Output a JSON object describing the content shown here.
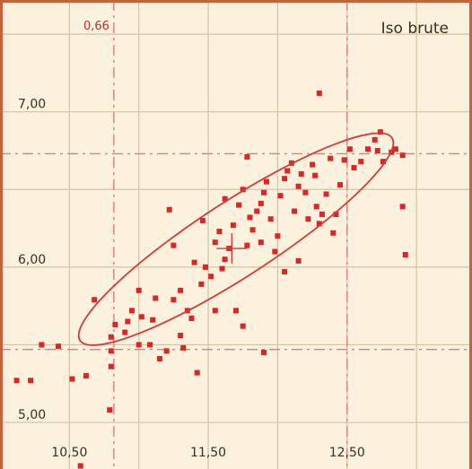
{
  "chart_data": {
    "type": "scatter",
    "title": "Iso brute",
    "correlation_label": "0,66",
    "xlim": [
      10.0,
      13.4
    ],
    "ylim": [
      4.7,
      7.72
    ],
    "x_ticks": [
      {
        "value": 10.5,
        "label": "10,50"
      },
      {
        "value": 11.5,
        "label": "11,50"
      },
      {
        "value": 12.5,
        "label": "12,50"
      }
    ],
    "y_ticks": [
      {
        "value": 5.0,
        "label": "5,00"
      },
      {
        "value": 6.0,
        "label": "6,00"
      },
      {
        "value": 7.0,
        "label": "7,00"
      }
    ],
    "grid": true,
    "colors": {
      "background": "#fbf1dd",
      "grid": "#d2c3a5",
      "points": "#dc2626",
      "ellipse": "#d43a3a",
      "dashed": "#e07b86",
      "frame": "#c5623a"
    },
    "mean": {
      "x": 11.67,
      "y": 6.12
    },
    "dashed_lines": {
      "x": [
        10.82,
        12.5
      ],
      "y": [
        5.47,
        6.73
      ]
    },
    "ellipse": {
      "cx": 11.7,
      "cy": 6.18,
      "rx_data": 1.34,
      "ry_data": 0.27,
      "angle_deg": -33
    },
    "points": [
      [
        10.0,
        5.65
      ],
      [
        10.12,
        5.27
      ],
      [
        10.22,
        5.27
      ],
      [
        10.42,
        5.49
      ],
      [
        10.52,
        5.28
      ],
      [
        10.62,
        5.3
      ],
      [
        10.68,
        5.79
      ],
      [
        10.79,
        5.08
      ],
      [
        10.8,
        5.36
      ],
      [
        10.8,
        5.46
      ],
      [
        10.8,
        5.55
      ],
      [
        10.83,
        5.63
      ],
      [
        10.9,
        5.58
      ],
      [
        10.92,
        5.65
      ],
      [
        10.95,
        5.72
      ],
      [
        11.0,
        5.5
      ],
      [
        11.02,
        5.68
      ],
      [
        11.08,
        5.5
      ],
      [
        11.1,
        5.66
      ],
      [
        11.12,
        5.8
      ],
      [
        11.15,
        5.41
      ],
      [
        11.2,
        5.46
      ],
      [
        11.25,
        5.79
      ],
      [
        11.3,
        5.85
      ],
      [
        11.3,
        5.56
      ],
      [
        11.32,
        5.48
      ],
      [
        11.35,
        5.72
      ],
      [
        11.38,
        5.67
      ],
      [
        11.4,
        6.03
      ],
      [
        11.42,
        5.32
      ],
      [
        11.45,
        5.89
      ],
      [
        11.48,
        6.0
      ],
      [
        11.52,
        5.94
      ],
      [
        11.55,
        6.16
      ],
      [
        11.6,
        5.99
      ],
      [
        11.62,
        6.05
      ],
      [
        11.65,
        6.12
      ],
      [
        11.68,
        6.27
      ],
      [
        11.7,
        5.72
      ],
      [
        11.72,
        6.4
      ],
      [
        11.75,
        6.5
      ],
      [
        11.78,
        6.14
      ],
      [
        11.8,
        6.32
      ],
      [
        11.82,
        6.24
      ],
      [
        11.85,
        6.36
      ],
      [
        11.88,
        6.41
      ],
      [
        11.9,
        6.48
      ],
      [
        11.92,
        6.55
      ],
      [
        11.95,
        6.31
      ],
      [
        11.98,
        6.1
      ],
      [
        12.0,
        6.2
      ],
      [
        12.02,
        6.46
      ],
      [
        12.05,
        6.57
      ],
      [
        12.07,
        6.62
      ],
      [
        12.1,
        6.67
      ],
      [
        12.12,
        6.36
      ],
      [
        12.15,
        6.52
      ],
      [
        12.17,
        6.6
      ],
      [
        12.2,
        6.48
      ],
      [
        12.22,
        6.31
      ],
      [
        12.25,
        6.66
      ],
      [
        12.27,
        6.59
      ],
      [
        12.3,
        6.28
      ],
      [
        12.32,
        6.34
      ],
      [
        12.35,
        6.47
      ],
      [
        12.38,
        6.7
      ],
      [
        12.4,
        6.22
      ],
      [
        12.42,
        6.34
      ],
      [
        12.45,
        6.53
      ],
      [
        12.48,
        6.69
      ],
      [
        12.52,
        6.76
      ],
      [
        12.55,
        6.64
      ],
      [
        12.6,
        6.68
      ],
      [
        12.65,
        6.76
      ],
      [
        12.7,
        6.82
      ],
      [
        12.72,
        6.75
      ],
      [
        12.74,
        6.87
      ],
      [
        12.76,
        6.68
      ],
      [
        12.82,
        6.74
      ],
      [
        12.85,
        6.76
      ],
      [
        12.9,
        6.72
      ],
      [
        12.9,
        6.39
      ],
      [
        12.92,
        6.08
      ],
      [
        12.3,
        7.12
      ],
      [
        10.58,
        4.72
      ],
      [
        10.3,
        5.5
      ],
      [
        11.9,
        5.45
      ],
      [
        11.75,
        5.62
      ],
      [
        12.05,
        5.97
      ],
      [
        12.15,
        6.04
      ],
      [
        11.55,
        5.72
      ],
      [
        11.25,
        6.14
      ],
      [
        11.0,
        5.85
      ],
      [
        11.58,
        6.23
      ],
      [
        11.22,
        6.37
      ],
      [
        11.46,
        6.3
      ],
      [
        11.62,
        6.44
      ],
      [
        11.78,
        6.71
      ],
      [
        12.28,
        6.39
      ],
      [
        11.88,
        6.16
      ]
    ]
  }
}
